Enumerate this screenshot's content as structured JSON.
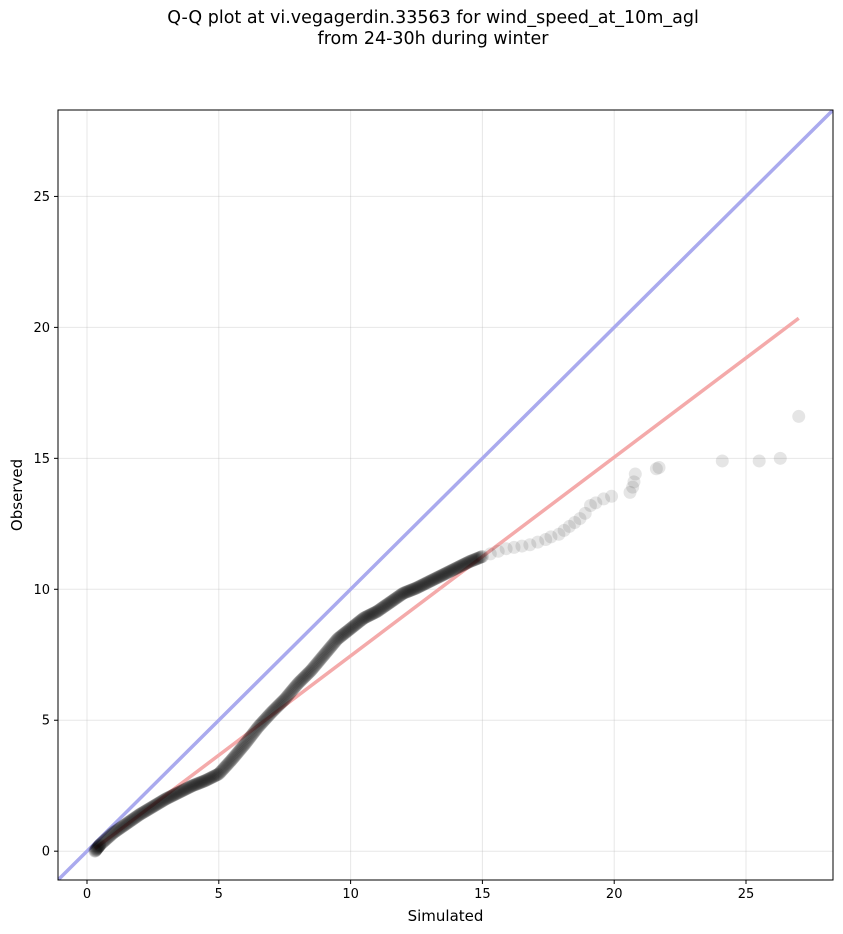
{
  "chart_data": {
    "type": "scatter",
    "title_lines": [
      "Q-Q plot at vi.vegagerdin.33563 for wind_speed_at_10m_agl",
      "from 24-30h during winter"
    ],
    "xlabel": "Simulated",
    "ylabel": "Observed",
    "xlim": [
      -1.1,
      28.3
    ],
    "ylim": [
      -1.1,
      28.3
    ],
    "xticks": [
      0,
      5,
      10,
      15,
      20,
      25
    ],
    "yticks": [
      0,
      5,
      10,
      15,
      20,
      25
    ],
    "grid": true,
    "identity_line": {
      "from": [
        -1.1,
        -1.1
      ],
      "to": [
        28.3,
        28.3
      ],
      "color": "#aaaaee"
    },
    "fit_line": {
      "from": [
        0.3,
        0.1
      ],
      "to": [
        27.0,
        20.35
      ],
      "color": "#f4aaaa"
    },
    "marker_color": "#000000",
    "quantile_anchors": {
      "x": [
        0.3,
        0.5,
        1,
        1.5,
        2,
        2.5,
        3,
        3.5,
        4,
        4.5,
        5,
        5.5,
        6,
        6.5,
        7,
        7.5,
        8,
        8.5,
        9,
        9.5,
        10,
        10.5,
        11,
        11.5,
        12,
        12.5,
        13,
        13.5,
        14,
        14.5,
        15
      ],
      "y": [
        0.0,
        0.25,
        0.7,
        1.05,
        1.4,
        1.7,
        2.0,
        2.25,
        2.5,
        2.7,
        2.95,
        3.5,
        4.1,
        4.75,
        5.3,
        5.8,
        6.4,
        6.9,
        7.5,
        8.1,
        8.5,
        8.9,
        9.15,
        9.5,
        9.85,
        10.05,
        10.3,
        10.55,
        10.8,
        11.05,
        11.25
      ]
    },
    "tail_points": {
      "x": [
        15.3,
        15.6,
        15.9,
        16.2,
        16.5,
        16.8,
        17.1,
        17.4,
        17.6,
        17.9,
        18.1,
        18.3,
        18.5,
        18.7,
        18.9,
        19.1,
        19.3,
        19.6,
        19.9,
        20.6,
        20.7,
        20.75,
        20.8,
        21.6,
        21.7,
        24.1,
        25.5,
        26.3,
        27.0
      ],
      "y": [
        11.35,
        11.45,
        11.55,
        11.6,
        11.65,
        11.7,
        11.8,
        11.9,
        12.0,
        12.1,
        12.25,
        12.4,
        12.55,
        12.7,
        12.9,
        13.2,
        13.3,
        13.45,
        13.55,
        13.7,
        13.9,
        14.1,
        14.4,
        14.6,
        14.65,
        14.9,
        14.9,
        15.0,
        16.6
      ]
    }
  }
}
